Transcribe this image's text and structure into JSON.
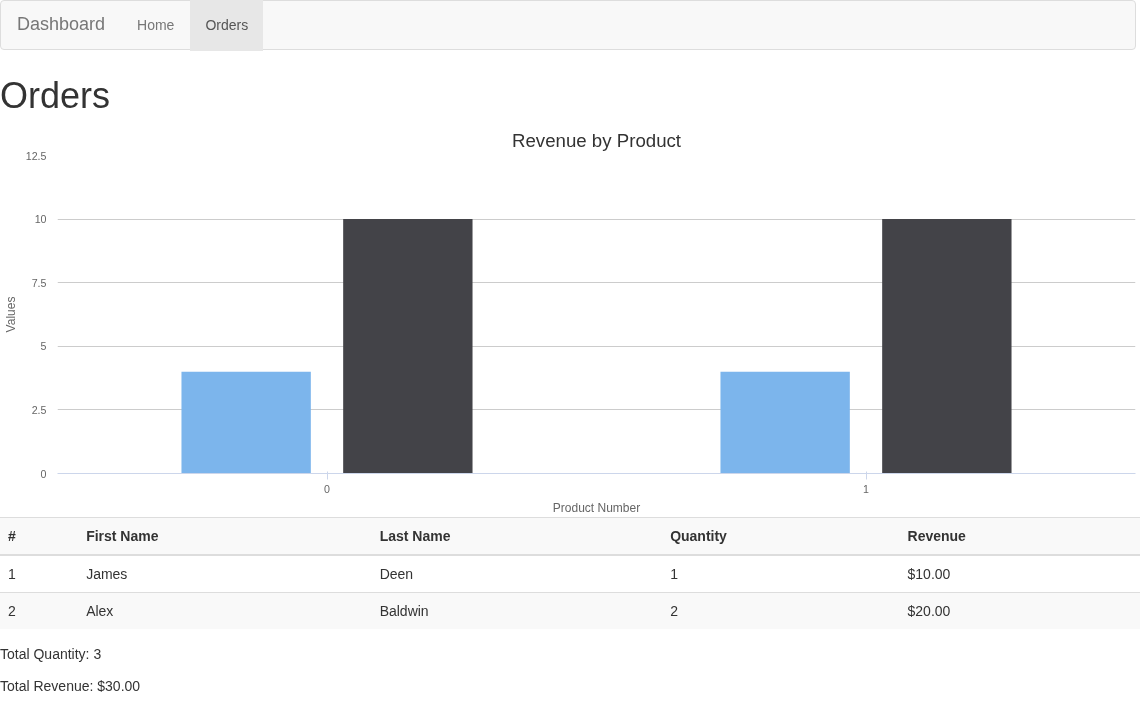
{
  "chart_data": {
    "type": "bar",
    "title": "Revenue by Product",
    "xlabel": "Product Number",
    "ylabel": "Values",
    "categories": [
      "0",
      "1"
    ],
    "series": [
      {
        "color": "#7cb5ec",
        "values": [
          4,
          4
        ]
      },
      {
        "color": "#434348",
        "values": [
          10,
          10
        ]
      }
    ],
    "ylim": [
      0,
      12.5
    ],
    "yticks": [
      0,
      2.5,
      5,
      7.5,
      10,
      12.5
    ],
    "grid": "y",
    "annotations": [
      "Dashboard",
      "Home",
      "Orders",
      "Orders",
      "#",
      "First Name",
      "Last Name",
      "Quantity",
      "Revenue",
      "1",
      "James",
      "Deen",
      "1",
      "$10.00",
      "2",
      "Alex",
      "Baldwin",
      "2",
      "$20.00",
      "Total Quantity: 3",
      "Total Revenue: $30.00"
    ]
  }
}
